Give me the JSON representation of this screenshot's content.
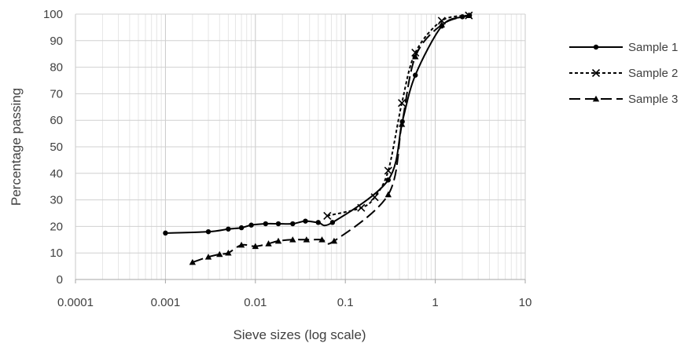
{
  "chart_data": {
    "type": "line",
    "title": "",
    "xlabel": "Sieve sizes (log scale)",
    "ylabel": "Percentage passing",
    "x_scale": "log",
    "xlim": [
      0.0001,
      10
    ],
    "ylim": [
      0,
      100
    ],
    "x_ticks": [
      "0.0001",
      "0.001",
      "0.01",
      "0.1",
      "1",
      "10"
    ],
    "y_ticks": [
      "0",
      "10",
      "20",
      "30",
      "40",
      "50",
      "60",
      "70",
      "80",
      "90",
      "100"
    ],
    "grid": true,
    "legend_position": "right",
    "series": [
      {
        "name": "Sample 1",
        "line_style": "solid",
        "marker": "circle",
        "color": "#000000",
        "points": [
          [
            0.001,
            17.5
          ],
          [
            0.003,
            18.0
          ],
          [
            0.005,
            19.0
          ],
          [
            0.007,
            19.5
          ],
          [
            0.009,
            20.5
          ],
          [
            0.013,
            21.0
          ],
          [
            0.018,
            21.0
          ],
          [
            0.026,
            21.0
          ],
          [
            0.036,
            22.0
          ],
          [
            0.05,
            21.5
          ],
          [
            0.072,
            21.5
          ],
          [
            0.3,
            37.5
          ],
          [
            0.43,
            59.5
          ],
          [
            0.6,
            77.0
          ],
          [
            1.18,
            95.5
          ],
          [
            2.0,
            99.0
          ],
          [
            2.4,
            99.5
          ]
        ]
      },
      {
        "name": "Sample 2",
        "line_style": "dotted",
        "marker": "x",
        "color": "#000000",
        "points": [
          [
            0.063,
            24.0
          ],
          [
            0.15,
            27.0
          ],
          [
            0.212,
            31.0
          ],
          [
            0.3,
            41.0
          ],
          [
            0.425,
            66.5
          ],
          [
            0.6,
            85.5
          ],
          [
            1.18,
            97.5
          ],
          [
            2.36,
            99.5
          ]
        ]
      },
      {
        "name": "Sample 3",
        "line_style": "dashed",
        "marker": "triangle",
        "color": "#000000",
        "points": [
          [
            0.002,
            6.5
          ],
          [
            0.003,
            8.5
          ],
          [
            0.004,
            9.5
          ],
          [
            0.005,
            10.0
          ],
          [
            0.007,
            13.0
          ],
          [
            0.01,
            12.5
          ],
          [
            0.014,
            13.5
          ],
          [
            0.018,
            14.5
          ],
          [
            0.026,
            15.0
          ],
          [
            0.037,
            15.0
          ],
          [
            0.055,
            15.0
          ],
          [
            0.075,
            14.5
          ],
          [
            0.3,
            32.0
          ],
          [
            0.425,
            58.5
          ],
          [
            0.6,
            84.0
          ],
          [
            1.18,
            96.0
          ],
          [
            2.36,
            99.5
          ]
        ]
      }
    ]
  }
}
